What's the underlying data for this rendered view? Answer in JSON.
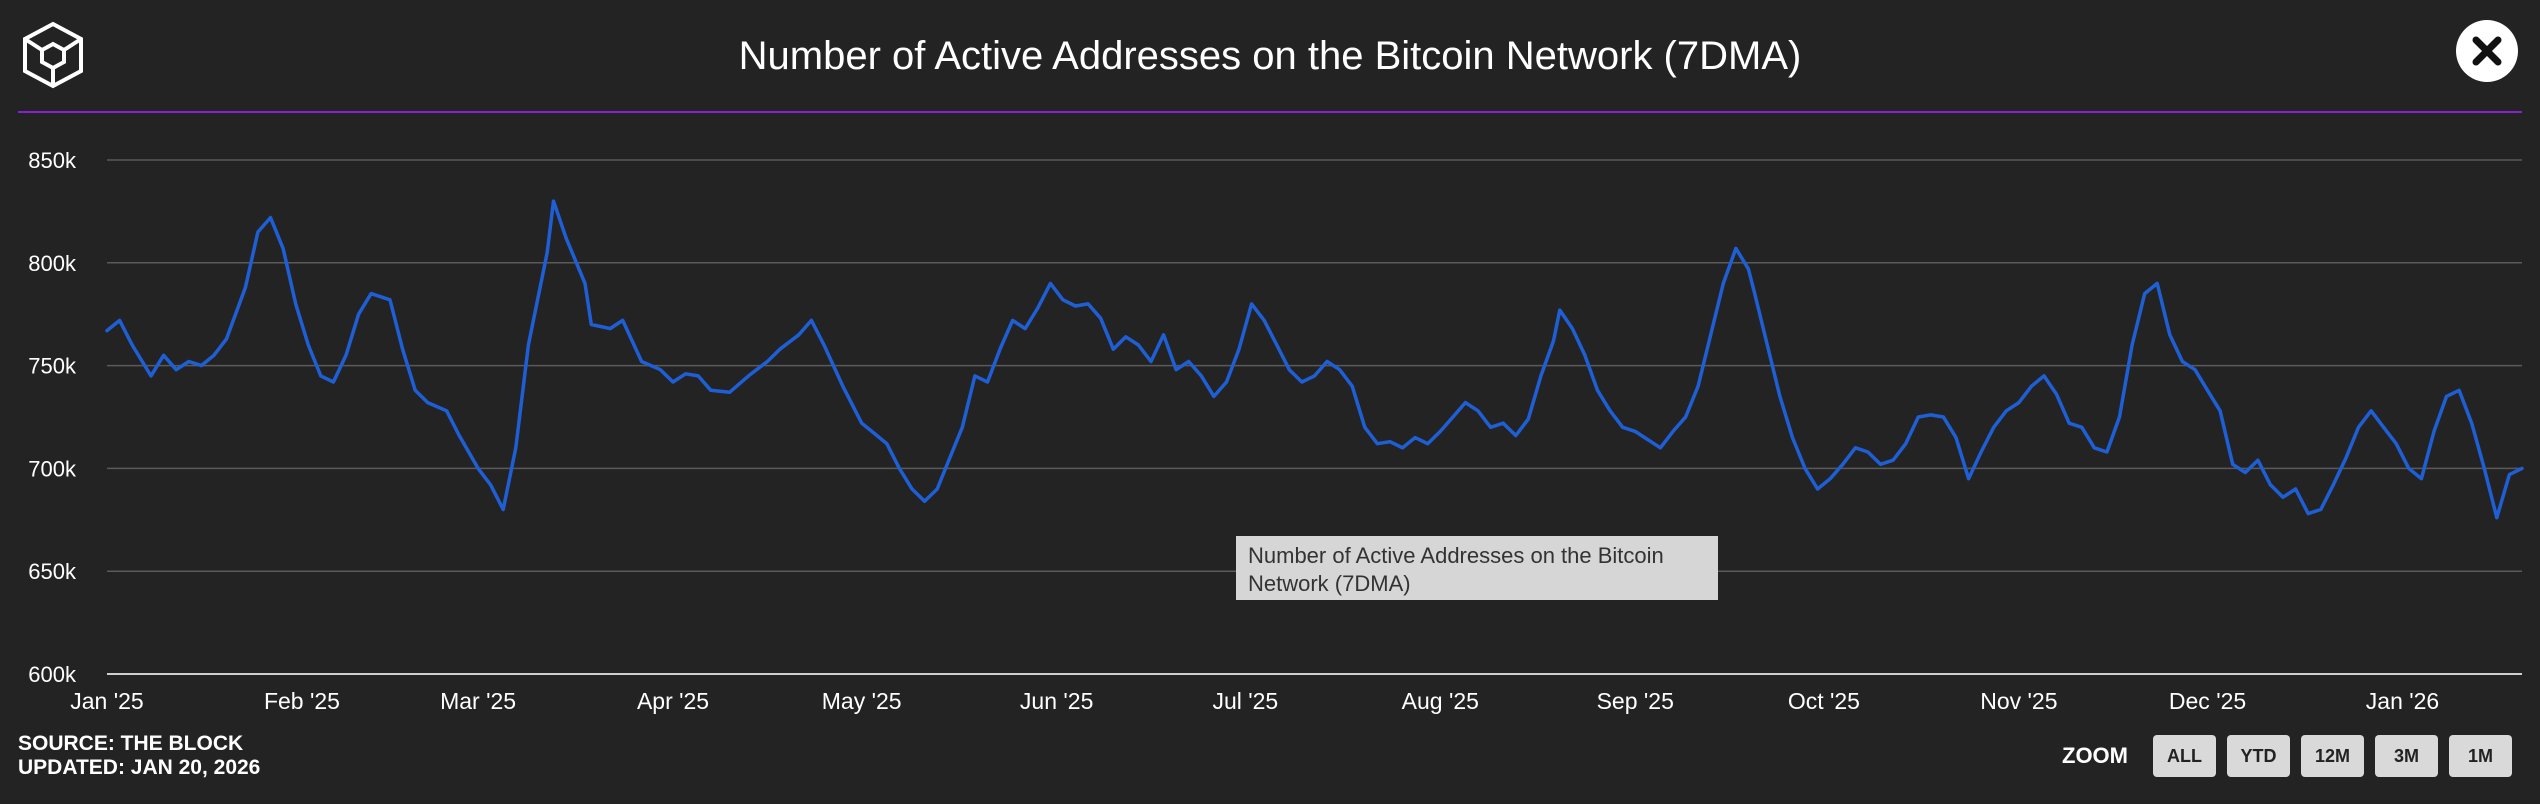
{
  "header": {
    "title": "Number of Active Addresses on the Bitcoin Network (7DMA)"
  },
  "tooltip": {
    "line1": "Number of Active Addresses on the Bitcoin",
    "line2": "Network (7DMA)"
  },
  "footer": {
    "source": "SOURCE: THE BLOCK",
    "updated": "UPDATED: JAN 20, 2026",
    "zoom_label": "ZOOM",
    "zoom_buttons": [
      "ALL",
      "YTD",
      "12M",
      "3M",
      "1M"
    ]
  },
  "colors": {
    "background": "#232323",
    "line": "#1f5fd6",
    "accent_rule": "#8a1fd0",
    "grid": "#5a5a5a"
  },
  "icons": {
    "logo": "the-block-cube-icon",
    "close": "close-icon"
  },
  "chart_data": {
    "type": "line",
    "title": "Number of Active Addresses on the Bitcoin Network (7DMA)",
    "xlabel": "",
    "ylabel": "",
    "ylim": [
      600000,
      850000
    ],
    "yticks": [
      {
        "value": 600000,
        "label": "600k"
      },
      {
        "value": 650000,
        "label": "650k"
      },
      {
        "value": 700000,
        "label": "700k"
      },
      {
        "value": 750000,
        "label": "750k"
      },
      {
        "value": 800000,
        "label": "800k"
      },
      {
        "value": 850000,
        "label": "850k"
      }
    ],
    "xticks": [
      {
        "date": "2025-01-01",
        "label": "Jan '25"
      },
      {
        "date": "2025-02-01",
        "label": "Feb '25"
      },
      {
        "date": "2025-03-01",
        "label": "Mar '25"
      },
      {
        "date": "2025-04-01",
        "label": "Apr '25"
      },
      {
        "date": "2025-05-01",
        "label": "May '25"
      },
      {
        "date": "2025-06-01",
        "label": "Jun '25"
      },
      {
        "date": "2025-07-01",
        "label": "Jul '25"
      },
      {
        "date": "2025-08-01",
        "label": "Aug '25"
      },
      {
        "date": "2025-09-01",
        "label": "Sep '25"
      },
      {
        "date": "2025-10-01",
        "label": "Oct '25"
      },
      {
        "date": "2025-11-01",
        "label": "Nov '25"
      },
      {
        "date": "2025-12-01",
        "label": "Dec '25"
      },
      {
        "date": "2026-01-01",
        "label": "Jan '26"
      }
    ],
    "grid": true,
    "legend": "none",
    "x_start": "2025-01-01",
    "x_end": "2026-01-20",
    "series": [
      {
        "name": "Number of Active Addresses on the Bitcoin Network (7DMA)",
        "points": [
          [
            "2025-01-01",
            767000
          ],
          [
            "2025-01-03",
            772000
          ],
          [
            "2025-01-05",
            760000
          ],
          [
            "2025-01-08",
            745000
          ],
          [
            "2025-01-10",
            755000
          ],
          [
            "2025-01-12",
            748000
          ],
          [
            "2025-01-14",
            752000
          ],
          [
            "2025-01-16",
            750000
          ],
          [
            "2025-01-18",
            755000
          ],
          [
            "2025-01-20",
            763000
          ],
          [
            "2025-01-23",
            788000
          ],
          [
            "2025-01-25",
            815000
          ],
          [
            "2025-01-27",
            822000
          ],
          [
            "2025-01-29",
            807000
          ],
          [
            "2025-01-31",
            780000
          ],
          [
            "2025-02-02",
            760000
          ],
          [
            "2025-02-04",
            745000
          ],
          [
            "2025-02-06",
            742000
          ],
          [
            "2025-02-08",
            755000
          ],
          [
            "2025-02-10",
            775000
          ],
          [
            "2025-02-12",
            785000
          ],
          [
            "2025-02-15",
            782000
          ],
          [
            "2025-02-17",
            758000
          ],
          [
            "2025-02-19",
            738000
          ],
          [
            "2025-02-21",
            732000
          ],
          [
            "2025-02-24",
            728000
          ],
          [
            "2025-02-26",
            716000
          ],
          [
            "2025-03-01",
            700000
          ],
          [
            "2025-03-03",
            692000
          ],
          [
            "2025-03-05",
            680000
          ],
          [
            "2025-03-07",
            710000
          ],
          [
            "2025-03-09",
            760000
          ],
          [
            "2025-03-12",
            805000
          ],
          [
            "2025-03-13",
            830000
          ],
          [
            "2025-03-15",
            812000
          ],
          [
            "2025-03-18",
            790000
          ],
          [
            "2025-03-19",
            770000
          ],
          [
            "2025-03-22",
            768000
          ],
          [
            "2025-03-24",
            772000
          ],
          [
            "2025-03-27",
            752000
          ],
          [
            "2025-03-30",
            748000
          ],
          [
            "2025-04-01",
            742000
          ],
          [
            "2025-04-03",
            746000
          ],
          [
            "2025-04-05",
            745000
          ],
          [
            "2025-04-07",
            738000
          ],
          [
            "2025-04-10",
            737000
          ],
          [
            "2025-04-13",
            745000
          ],
          [
            "2025-04-16",
            752000
          ],
          [
            "2025-04-18",
            758000
          ],
          [
            "2025-04-21",
            765000
          ],
          [
            "2025-04-23",
            772000
          ],
          [
            "2025-04-25",
            760000
          ],
          [
            "2025-04-28",
            740000
          ],
          [
            "2025-05-01",
            722000
          ],
          [
            "2025-05-03",
            717000
          ],
          [
            "2025-05-05",
            712000
          ],
          [
            "2025-05-07",
            700000
          ],
          [
            "2025-05-09",
            690000
          ],
          [
            "2025-05-11",
            684000
          ],
          [
            "2025-05-13",
            690000
          ],
          [
            "2025-05-15",
            705000
          ],
          [
            "2025-05-17",
            720000
          ],
          [
            "2025-05-19",
            745000
          ],
          [
            "2025-05-21",
            742000
          ],
          [
            "2025-05-23",
            758000
          ],
          [
            "2025-05-25",
            772000
          ],
          [
            "2025-05-27",
            768000
          ],
          [
            "2025-05-29",
            778000
          ],
          [
            "2025-05-31",
            790000
          ],
          [
            "2025-06-02",
            782000
          ],
          [
            "2025-06-04",
            779000
          ],
          [
            "2025-06-06",
            780000
          ],
          [
            "2025-06-08",
            773000
          ],
          [
            "2025-06-10",
            758000
          ],
          [
            "2025-06-12",
            764000
          ],
          [
            "2025-06-14",
            760000
          ],
          [
            "2025-06-16",
            752000
          ],
          [
            "2025-06-18",
            765000
          ],
          [
            "2025-06-20",
            748000
          ],
          [
            "2025-06-22",
            752000
          ],
          [
            "2025-06-24",
            745000
          ],
          [
            "2025-06-26",
            735000
          ],
          [
            "2025-06-28",
            742000
          ],
          [
            "2025-06-30",
            758000
          ],
          [
            "2025-07-02",
            780000
          ],
          [
            "2025-07-04",
            772000
          ],
          [
            "2025-07-06",
            760000
          ],
          [
            "2025-07-08",
            748000
          ],
          [
            "2025-07-10",
            742000
          ],
          [
            "2025-07-12",
            745000
          ],
          [
            "2025-07-14",
            752000
          ],
          [
            "2025-07-16",
            748000
          ],
          [
            "2025-07-18",
            740000
          ],
          [
            "2025-07-20",
            720000
          ],
          [
            "2025-07-22",
            712000
          ],
          [
            "2025-07-24",
            713000
          ],
          [
            "2025-07-26",
            710000
          ],
          [
            "2025-07-28",
            715000
          ],
          [
            "2025-07-30",
            712000
          ],
          [
            "2025-08-01",
            718000
          ],
          [
            "2025-08-03",
            725000
          ],
          [
            "2025-08-05",
            732000
          ],
          [
            "2025-08-07",
            728000
          ],
          [
            "2025-08-09",
            720000
          ],
          [
            "2025-08-11",
            722000
          ],
          [
            "2025-08-13",
            716000
          ],
          [
            "2025-08-15",
            724000
          ],
          [
            "2025-08-17",
            745000
          ],
          [
            "2025-08-19",
            762000
          ],
          [
            "2025-08-20",
            777000
          ],
          [
            "2025-08-22",
            768000
          ],
          [
            "2025-08-24",
            755000
          ],
          [
            "2025-08-26",
            738000
          ],
          [
            "2025-08-28",
            728000
          ],
          [
            "2025-08-30",
            720000
          ],
          [
            "2025-09-01",
            718000
          ],
          [
            "2025-09-03",
            714000
          ],
          [
            "2025-09-05",
            710000
          ],
          [
            "2025-09-07",
            718000
          ],
          [
            "2025-09-09",
            725000
          ],
          [
            "2025-09-11",
            740000
          ],
          [
            "2025-09-13",
            765000
          ],
          [
            "2025-09-15",
            790000
          ],
          [
            "2025-09-17",
            807000
          ],
          [
            "2025-09-19",
            797000
          ],
          [
            "2025-09-20",
            785000
          ],
          [
            "2025-09-22",
            760000
          ],
          [
            "2025-09-24",
            735000
          ],
          [
            "2025-09-26",
            715000
          ],
          [
            "2025-09-28",
            700000
          ],
          [
            "2025-09-30",
            690000
          ],
          [
            "2025-10-02",
            695000
          ],
          [
            "2025-10-04",
            702000
          ],
          [
            "2025-10-06",
            710000
          ],
          [
            "2025-10-08",
            708000
          ],
          [
            "2025-10-10",
            702000
          ],
          [
            "2025-10-12",
            704000
          ],
          [
            "2025-10-14",
            712000
          ],
          [
            "2025-10-16",
            725000
          ],
          [
            "2025-10-18",
            726000
          ],
          [
            "2025-10-20",
            725000
          ],
          [
            "2025-10-22",
            715000
          ],
          [
            "2025-10-24",
            695000
          ],
          [
            "2025-10-26",
            708000
          ],
          [
            "2025-10-28",
            720000
          ],
          [
            "2025-10-30",
            728000
          ],
          [
            "2025-11-01",
            732000
          ],
          [
            "2025-11-03",
            740000
          ],
          [
            "2025-11-05",
            745000
          ],
          [
            "2025-11-07",
            736000
          ],
          [
            "2025-11-09",
            722000
          ],
          [
            "2025-11-11",
            720000
          ],
          [
            "2025-11-13",
            710000
          ],
          [
            "2025-11-15",
            708000
          ],
          [
            "2025-11-17",
            725000
          ],
          [
            "2025-11-19",
            760000
          ],
          [
            "2025-11-21",
            785000
          ],
          [
            "2025-11-23",
            790000
          ],
          [
            "2025-11-25",
            765000
          ],
          [
            "2025-11-27",
            752000
          ],
          [
            "2025-11-29",
            748000
          ],
          [
            "2025-12-01",
            738000
          ],
          [
            "2025-12-03",
            728000
          ],
          [
            "2025-12-05",
            702000
          ],
          [
            "2025-12-07",
            698000
          ],
          [
            "2025-12-09",
            704000
          ],
          [
            "2025-12-11",
            692000
          ],
          [
            "2025-12-13",
            686000
          ],
          [
            "2025-12-15",
            690000
          ],
          [
            "2025-12-17",
            678000
          ],
          [
            "2025-12-19",
            680000
          ],
          [
            "2025-12-21",
            692000
          ],
          [
            "2025-12-23",
            705000
          ],
          [
            "2025-12-25",
            720000
          ],
          [
            "2025-12-27",
            728000
          ],
          [
            "2025-12-29",
            720000
          ],
          [
            "2025-12-31",
            712000
          ],
          [
            "2026-01-02",
            700000
          ],
          [
            "2026-01-04",
            695000
          ],
          [
            "2026-01-06",
            718000
          ],
          [
            "2026-01-08",
            735000
          ],
          [
            "2026-01-10",
            738000
          ],
          [
            "2026-01-12",
            722000
          ],
          [
            "2026-01-14",
            700000
          ],
          [
            "2026-01-16",
            676000
          ],
          [
            "2026-01-18",
            697000
          ],
          [
            "2026-01-20",
            700000
          ]
        ]
      }
    ]
  }
}
